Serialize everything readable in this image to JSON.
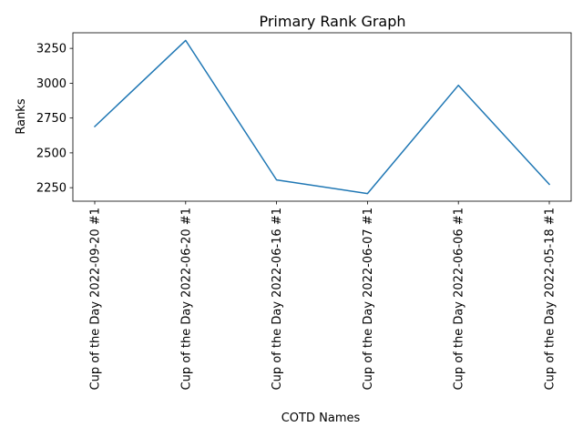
{
  "chart_data": {
    "type": "line",
    "title": "Primary Rank Graph",
    "xlabel": "COTD Names",
    "ylabel": "Ranks",
    "categories": [
      "Cup of the Day 2022-09-20 #1",
      "Cup of the Day 2022-06-20 #1",
      "Cup of the Day 2022-06-16 #1",
      "Cup of the Day 2022-06-07 #1",
      "Cup of the Day 2022-06-06 #1",
      "Cup of the Day 2022-05-18 #1"
    ],
    "values": [
      2689,
      3307,
      2306,
      2208,
      2985,
      2274
    ],
    "yticks": [
      2250,
      2500,
      2750,
      3000,
      3250
    ],
    "ytick_labels": [
      "2250",
      "2500",
      "2750",
      "3000",
      "3250"
    ],
    "ylim": [
      2153,
      3362
    ],
    "grid": false,
    "line_color": "#1f77b4"
  }
}
